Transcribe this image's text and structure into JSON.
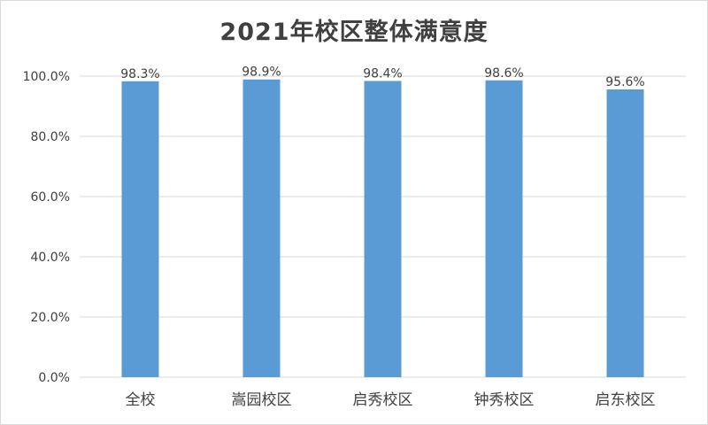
{
  "chart_data": {
    "type": "bar",
    "title": "2021年校区整体满意度",
    "categories": [
      "全校",
      "嵩园校区",
      "启秀校区",
      "钟秀校区",
      "启东校区"
    ],
    "values": [
      98.3,
      98.9,
      98.4,
      98.6,
      95.6
    ],
    "data_labels": [
      "98.3%",
      "98.9%",
      "98.4%",
      "98.6%",
      "95.6%"
    ],
    "yticks": [
      "0.0%",
      "20.0%",
      "40.0%",
      "60.0%",
      "80.0%",
      "100.0%"
    ],
    "ytick_values": [
      0,
      20,
      40,
      60,
      80,
      100
    ],
    "ylim": [
      0,
      100
    ],
    "xlabel": "",
    "ylabel": "",
    "grid": true,
    "legend": false,
    "bar_color": "#5b9bd5",
    "grid_color": "#d9d9d9"
  }
}
